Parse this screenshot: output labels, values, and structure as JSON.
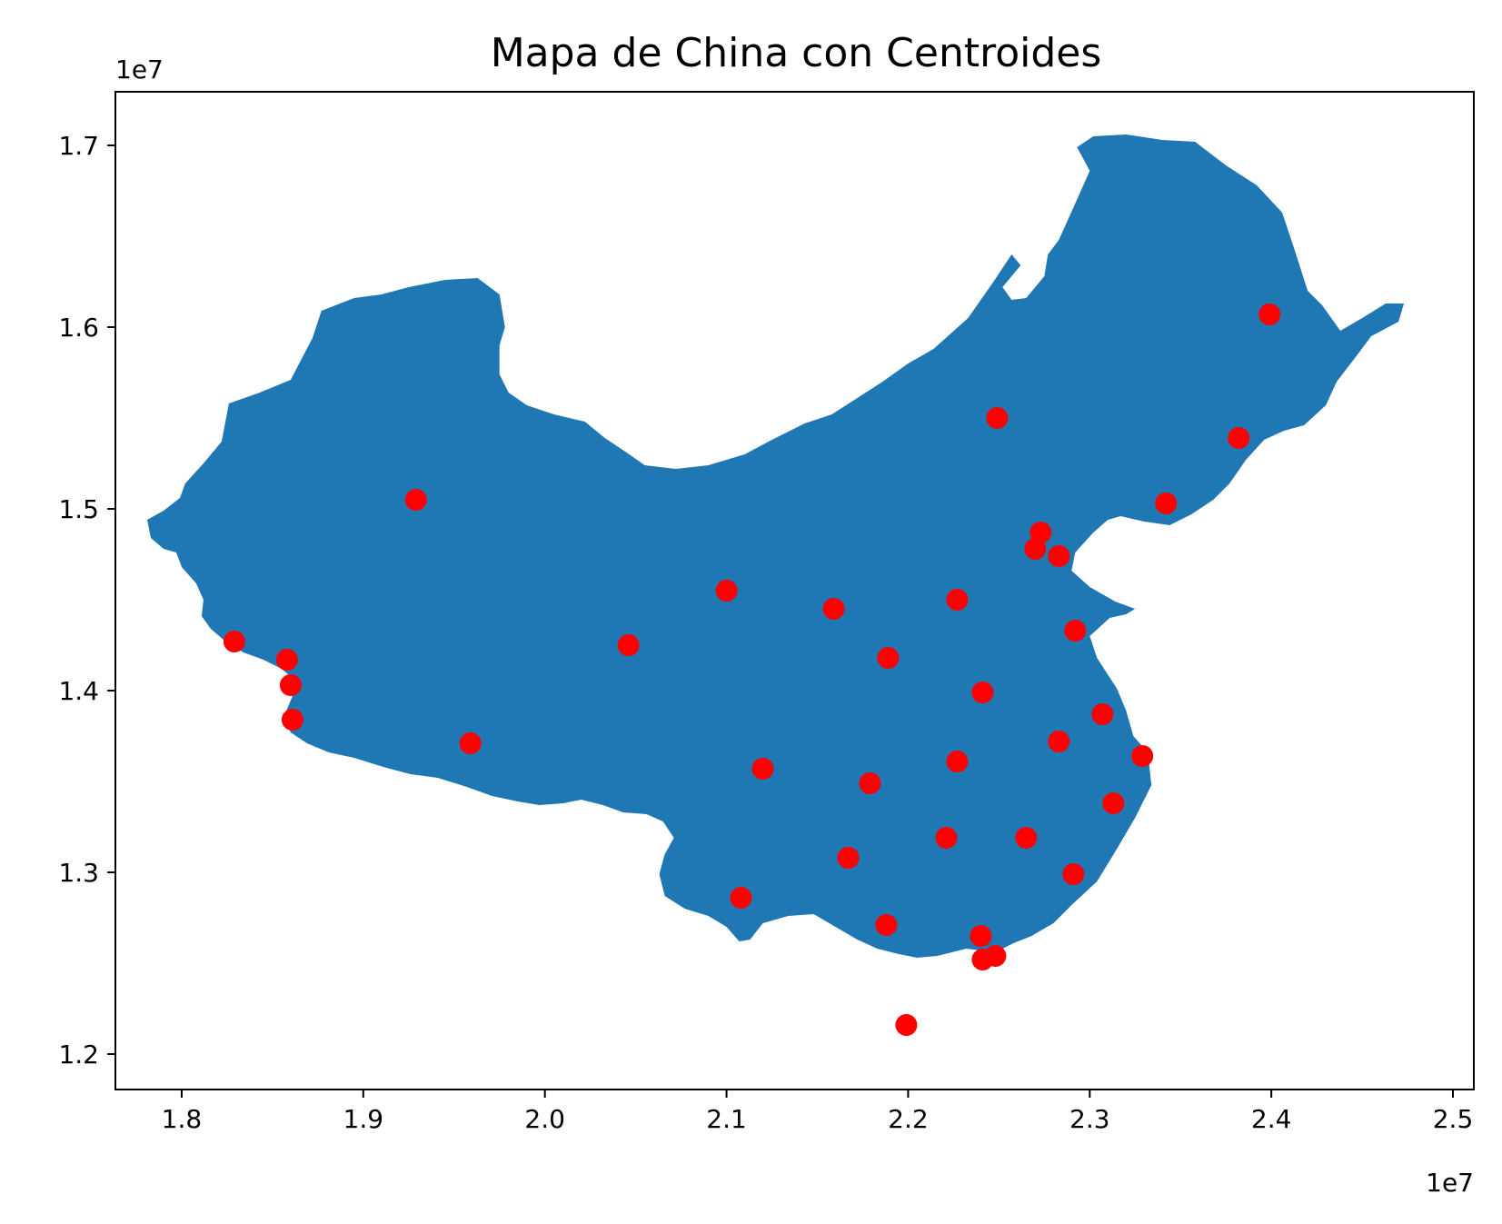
{
  "chart_data": {
    "type": "scatter",
    "title": "Mapa de China con Centroides",
    "xlabel": "",
    "ylabel": "",
    "x_offset_label": "1e7",
    "y_offset_label": "1e7",
    "xlim": [
      1.7635,
      2.5115
    ],
    "ylim": [
      1.1805,
      1.7295
    ],
    "xticks": [
      {
        "value": 1.8,
        "label": "1.8"
      },
      {
        "value": 1.9,
        "label": "1.9"
      },
      {
        "value": 2.0,
        "label": "2.0"
      },
      {
        "value": 2.1,
        "label": "2.1"
      },
      {
        "value": 2.2,
        "label": "2.2"
      },
      {
        "value": 2.3,
        "label": "2.3"
      },
      {
        "value": 2.4,
        "label": "2.4"
      },
      {
        "value": 2.5,
        "label": "2.5"
      }
    ],
    "yticks": [
      {
        "value": 1.2,
        "label": "1.2"
      },
      {
        "value": 1.3,
        "label": "1.3"
      },
      {
        "value": 1.4,
        "label": "1.4"
      },
      {
        "value": 1.5,
        "label": "1.5"
      },
      {
        "value": 1.6,
        "label": "1.6"
      },
      {
        "value": 1.7,
        "label": "1.7"
      }
    ],
    "grid": false,
    "legend": "none",
    "map_fill_color": "#1f77b4",
    "point_color": "#ff0000",
    "outline": [
      [
        1.797,
        1.476
      ],
      [
        1.8,
        1.468
      ],
      [
        1.808,
        1.459
      ],
      [
        1.812,
        1.45
      ],
      [
        1.811,
        1.441
      ],
      [
        1.816,
        1.434
      ],
      [
        1.823,
        1.428
      ],
      [
        1.834,
        1.421
      ],
      [
        1.845,
        1.417
      ],
      [
        1.855,
        1.412
      ],
      [
        1.862,
        1.406
      ],
      [
        1.861,
        1.397
      ],
      [
        1.856,
        1.385
      ],
      [
        1.86,
        1.377
      ],
      [
        1.869,
        1.371
      ],
      [
        1.881,
        1.366
      ],
      [
        1.895,
        1.363
      ],
      [
        1.911,
        1.358
      ],
      [
        1.926,
        1.354
      ],
      [
        1.941,
        1.352
      ],
      [
        1.957,
        1.347
      ],
      [
        1.971,
        1.342
      ],
      [
        1.985,
        1.339
      ],
      [
        1.997,
        1.337
      ],
      [
        2.01,
        1.338
      ],
      [
        2.02,
        1.34
      ],
      [
        2.032,
        1.337
      ],
      [
        2.043,
        1.333
      ],
      [
        2.056,
        1.332
      ],
      [
        2.065,
        1.328
      ],
      [
        2.071,
        1.319
      ],
      [
        2.066,
        1.31
      ],
      [
        2.063,
        1.299
      ],
      [
        2.066,
        1.287
      ],
      [
        2.077,
        1.28
      ],
      [
        2.09,
        1.276
      ],
      [
        2.1,
        1.27
      ],
      [
        2.107,
        1.262
      ],
      [
        2.113,
        1.263
      ],
      [
        2.12,
        1.272
      ],
      [
        2.134,
        1.276
      ],
      [
        2.148,
        1.277
      ],
      [
        2.16,
        1.27
      ],
      [
        2.172,
        1.263
      ],
      [
        2.183,
        1.258
      ],
      [
        2.195,
        1.255
      ],
      [
        2.205,
        1.253
      ],
      [
        2.216,
        1.254
      ],
      [
        2.232,
        1.258
      ],
      [
        2.248,
        1.256
      ],
      [
        2.258,
        1.261
      ],
      [
        2.268,
        1.265
      ],
      [
        2.28,
        1.272
      ],
      [
        2.29,
        1.282
      ],
      [
        2.304,
        1.295
      ],
      [
        2.315,
        1.313
      ],
      [
        2.325,
        1.33
      ],
      [
        2.334,
        1.348
      ],
      [
        2.332,
        1.366
      ],
      [
        2.324,
        1.375
      ],
      [
        2.32,
        1.389
      ],
      [
        2.315,
        1.401
      ],
      [
        2.304,
        1.418
      ],
      [
        2.3,
        1.43
      ],
      [
        2.311,
        1.44
      ],
      [
        2.32,
        1.442
      ],
      [
        2.325,
        1.445
      ],
      [
        2.314,
        1.449
      ],
      [
        2.3,
        1.457
      ],
      [
        2.29,
        1.466
      ],
      [
        2.292,
        1.476
      ],
      [
        2.302,
        1.487
      ],
      [
        2.31,
        1.494
      ],
      [
        2.317,
        1.496
      ],
      [
        2.33,
        1.493
      ],
      [
        2.344,
        1.491
      ],
      [
        2.356,
        1.497
      ],
      [
        2.368,
        1.505
      ],
      [
        2.377,
        1.514
      ],
      [
        2.386,
        1.527
      ],
      [
        2.396,
        1.538
      ],
      [
        2.407,
        1.543
      ],
      [
        2.418,
        1.546
      ],
      [
        2.43,
        1.557
      ],
      [
        2.436,
        1.57
      ],
      [
        2.446,
        1.583
      ],
      [
        2.455,
        1.595
      ],
      [
        2.47,
        1.603
      ],
      [
        2.473,
        1.613
      ],
      [
        2.463,
        1.613
      ],
      [
        2.45,
        1.605
      ],
      [
        2.438,
        1.598
      ],
      [
        2.428,
        1.612
      ],
      [
        2.42,
        1.62
      ],
      [
        2.413,
        1.642
      ],
      [
        2.406,
        1.663
      ],
      [
        2.392,
        1.678
      ],
      [
        2.375,
        1.689
      ],
      [
        2.358,
        1.702
      ],
      [
        2.34,
        1.703
      ],
      [
        2.32,
        1.706
      ],
      [
        2.302,
        1.705
      ],
      [
        2.293,
        1.699
      ],
      [
        2.3,
        1.686
      ],
      [
        2.292,
        1.668
      ],
      [
        2.283,
        1.648
      ],
      [
        2.277,
        1.64
      ],
      [
        2.275,
        1.628
      ],
      [
        2.265,
        1.616
      ],
      [
        2.257,
        1.615
      ],
      [
        2.252,
        1.622
      ],
      [
        2.262,
        1.634
      ],
      [
        2.257,
        1.64
      ],
      [
        2.247,
        1.625
      ],
      [
        2.233,
        1.605
      ],
      [
        2.214,
        1.588
      ],
      [
        2.2,
        1.58
      ],
      [
        2.186,
        1.57
      ],
      [
        2.172,
        1.561
      ],
      [
        2.158,
        1.552
      ],
      [
        2.143,
        1.547
      ],
      [
        2.125,
        1.538
      ],
      [
        2.11,
        1.53
      ],
      [
        2.09,
        1.524
      ],
      [
        2.072,
        1.522
      ],
      [
        2.055,
        1.524
      ],
      [
        2.045,
        1.531
      ],
      [
        2.033,
        1.539
      ],
      [
        2.022,
        1.548
      ],
      [
        2.005,
        1.552
      ],
      [
        1.99,
        1.557
      ],
      [
        1.98,
        1.564
      ],
      [
        1.975,
        1.574
      ],
      [
        1.975,
        1.59
      ],
      [
        1.978,
        1.6
      ],
      [
        1.975,
        1.618
      ],
      [
        1.963,
        1.627
      ],
      [
        1.945,
        1.626
      ],
      [
        1.925,
        1.622
      ],
      [
        1.91,
        1.618
      ],
      [
        1.895,
        1.616
      ],
      [
        1.877,
        1.609
      ],
      [
        1.872,
        1.594
      ],
      [
        1.86,
        1.571
      ],
      [
        1.843,
        1.564
      ],
      [
        1.826,
        1.558
      ],
      [
        1.822,
        1.537
      ],
      [
        1.812,
        1.525
      ],
      [
        1.802,
        1.514
      ],
      [
        1.799,
        1.506
      ],
      [
        1.79,
        1.499
      ],
      [
        1.781,
        1.494
      ],
      [
        1.783,
        1.484
      ],
      [
        1.79,
        1.478
      ],
      [
        1.797,
        1.476
      ]
    ],
    "points": [
      {
        "x": 2.399,
        "y": 1.607
      },
      {
        "x": 2.382,
        "y": 1.539
      },
      {
        "x": 2.342,
        "y": 1.503
      },
      {
        "x": 2.249,
        "y": 1.55
      },
      {
        "x": 2.273,
        "y": 1.487
      },
      {
        "x": 2.27,
        "y": 1.478
      },
      {
        "x": 2.283,
        "y": 1.474
      },
      {
        "x": 2.227,
        "y": 1.45
      },
      {
        "x": 2.292,
        "y": 1.433
      },
      {
        "x": 2.189,
        "y": 1.418
      },
      {
        "x": 2.159,
        "y": 1.445
      },
      {
        "x": 2.1,
        "y": 1.455
      },
      {
        "x": 2.046,
        "y": 1.425
      },
      {
        "x": 1.929,
        "y": 1.505
      },
      {
        "x": 1.829,
        "y": 1.427
      },
      {
        "x": 1.858,
        "y": 1.417
      },
      {
        "x": 1.86,
        "y": 1.403
      },
      {
        "x": 1.861,
        "y": 1.384
      },
      {
        "x": 1.959,
        "y": 1.371
      },
      {
        "x": 2.241,
        "y": 1.399
      },
      {
        "x": 2.307,
        "y": 1.387
      },
      {
        "x": 2.283,
        "y": 1.372
      },
      {
        "x": 2.329,
        "y": 1.364
      },
      {
        "x": 2.227,
        "y": 1.361
      },
      {
        "x": 2.12,
        "y": 1.357
      },
      {
        "x": 2.179,
        "y": 1.349
      },
      {
        "x": 2.313,
        "y": 1.338
      },
      {
        "x": 2.265,
        "y": 1.319
      },
      {
        "x": 2.221,
        "y": 1.319
      },
      {
        "x": 2.167,
        "y": 1.308
      },
      {
        "x": 2.291,
        "y": 1.299
      },
      {
        "x": 2.108,
        "y": 1.286
      },
      {
        "x": 2.188,
        "y": 1.271
      },
      {
        "x": 2.24,
        "y": 1.265
      },
      {
        "x": 2.241,
        "y": 1.252
      },
      {
        "x": 2.248,
        "y": 1.254
      },
      {
        "x": 2.199,
        "y": 1.216
      }
    ]
  }
}
